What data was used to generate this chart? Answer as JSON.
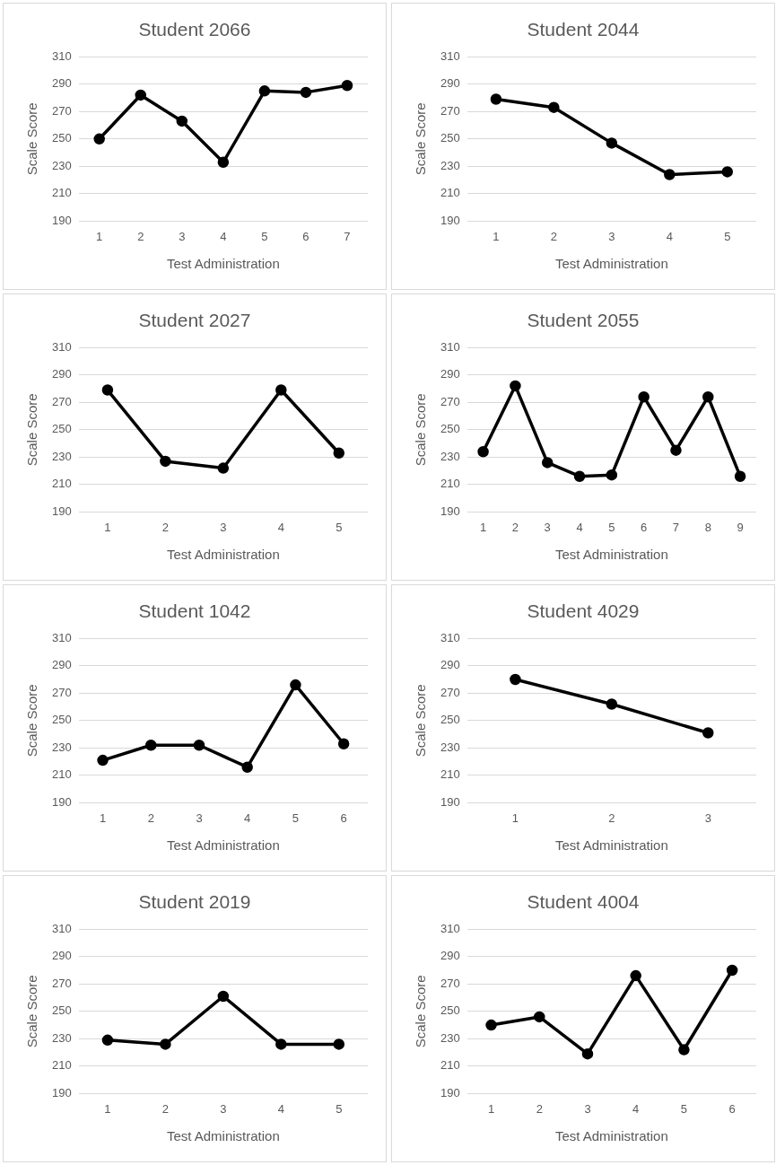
{
  "chart_data": [
    {
      "type": "line",
      "title": "Student 2066",
      "xlabel": "Test Administration",
      "ylabel": "Scale Score",
      "categories": [
        "1",
        "2",
        "3",
        "4",
        "5",
        "6",
        "7"
      ],
      "values": [
        250,
        282,
        263,
        233,
        285,
        284,
        289
      ],
      "color": "#000000",
      "ylim": [
        190,
        310
      ],
      "yticks": [
        190,
        210,
        230,
        250,
        270,
        290,
        310
      ],
      "grid": "y",
      "legend": false,
      "marker": "circle",
      "line_style": "solid"
    },
    {
      "type": "line",
      "title": "Student 2044",
      "xlabel": "Test Administration",
      "ylabel": "Scale Score",
      "categories": [
        "1",
        "2",
        "3",
        "4",
        "5"
      ],
      "values": [
        279,
        273,
        247,
        224,
        226
      ],
      "color": "#000000",
      "ylim": [
        190,
        310
      ],
      "yticks": [
        190,
        210,
        230,
        250,
        270,
        290,
        310
      ],
      "grid": "y",
      "legend": false,
      "marker": "circle",
      "line_style": "solid"
    },
    {
      "type": "line",
      "title": "Student 2027",
      "xlabel": "Test Administration",
      "ylabel": "Scale Score",
      "categories": [
        "1",
        "2",
        "3",
        "4",
        "5"
      ],
      "values": [
        279,
        227,
        222,
        279,
        233
      ],
      "color": "#000000",
      "ylim": [
        190,
        310
      ],
      "yticks": [
        190,
        210,
        230,
        250,
        270,
        290,
        310
      ],
      "grid": "y",
      "legend": false,
      "marker": "circle",
      "line_style": "solid"
    },
    {
      "type": "line",
      "title": "Student 2055",
      "xlabel": "Test Administration",
      "ylabel": "Scale Score",
      "categories": [
        "1",
        "2",
        "3",
        "4",
        "5",
        "6",
        "7",
        "8",
        "9"
      ],
      "values": [
        234,
        282,
        226,
        216,
        217,
        274,
        235,
        274,
        216
      ],
      "color": "#000000",
      "ylim": [
        190,
        310
      ],
      "yticks": [
        190,
        210,
        230,
        250,
        270,
        290,
        310
      ],
      "grid": "y",
      "legend": false,
      "marker": "circle",
      "line_style": "solid"
    },
    {
      "type": "line",
      "title": "Student 1042",
      "xlabel": "Test Administration",
      "ylabel": "Scale Score",
      "categories": [
        "1",
        "2",
        "3",
        "4",
        "5",
        "6"
      ],
      "values": [
        221,
        232,
        232,
        216,
        276,
        233
      ],
      "color": "#000000",
      "ylim": [
        190,
        310
      ],
      "yticks": [
        190,
        210,
        230,
        250,
        270,
        290,
        310
      ],
      "grid": "y",
      "legend": false,
      "marker": "circle",
      "line_style": "solid"
    },
    {
      "type": "line",
      "title": "Student 4029",
      "xlabel": "Test Administration",
      "ylabel": "Scale Score",
      "categories": [
        "1",
        "2",
        "3"
      ],
      "values": [
        280,
        262,
        241
      ],
      "color": "#000000",
      "ylim": [
        190,
        310
      ],
      "yticks": [
        190,
        210,
        230,
        250,
        270,
        290,
        310
      ],
      "grid": "y",
      "legend": false,
      "marker": "circle",
      "line_style": "solid"
    },
    {
      "type": "line",
      "title": "Student 2019",
      "xlabel": "Test Administration",
      "ylabel": "Scale Score",
      "categories": [
        "1",
        "2",
        "3",
        "4",
        "5"
      ],
      "values": [
        229,
        226,
        261,
        226,
        226
      ],
      "color": "#000000",
      "ylim": [
        190,
        310
      ],
      "yticks": [
        190,
        210,
        230,
        250,
        270,
        290,
        310
      ],
      "grid": "y",
      "legend": false,
      "marker": "circle",
      "line_style": "solid"
    },
    {
      "type": "line",
      "title": "Student 4004",
      "xlabel": "Test Administration",
      "ylabel": "Scale Score",
      "categories": [
        "1",
        "2",
        "3",
        "4",
        "5",
        "6"
      ],
      "values": [
        240,
        246,
        219,
        276,
        222,
        280
      ],
      "color": "#000000",
      "ylim": [
        190,
        310
      ],
      "yticks": [
        190,
        210,
        230,
        250,
        270,
        290,
        310
      ],
      "grid": "y",
      "legend": false,
      "marker": "circle",
      "line_style": "solid"
    }
  ]
}
